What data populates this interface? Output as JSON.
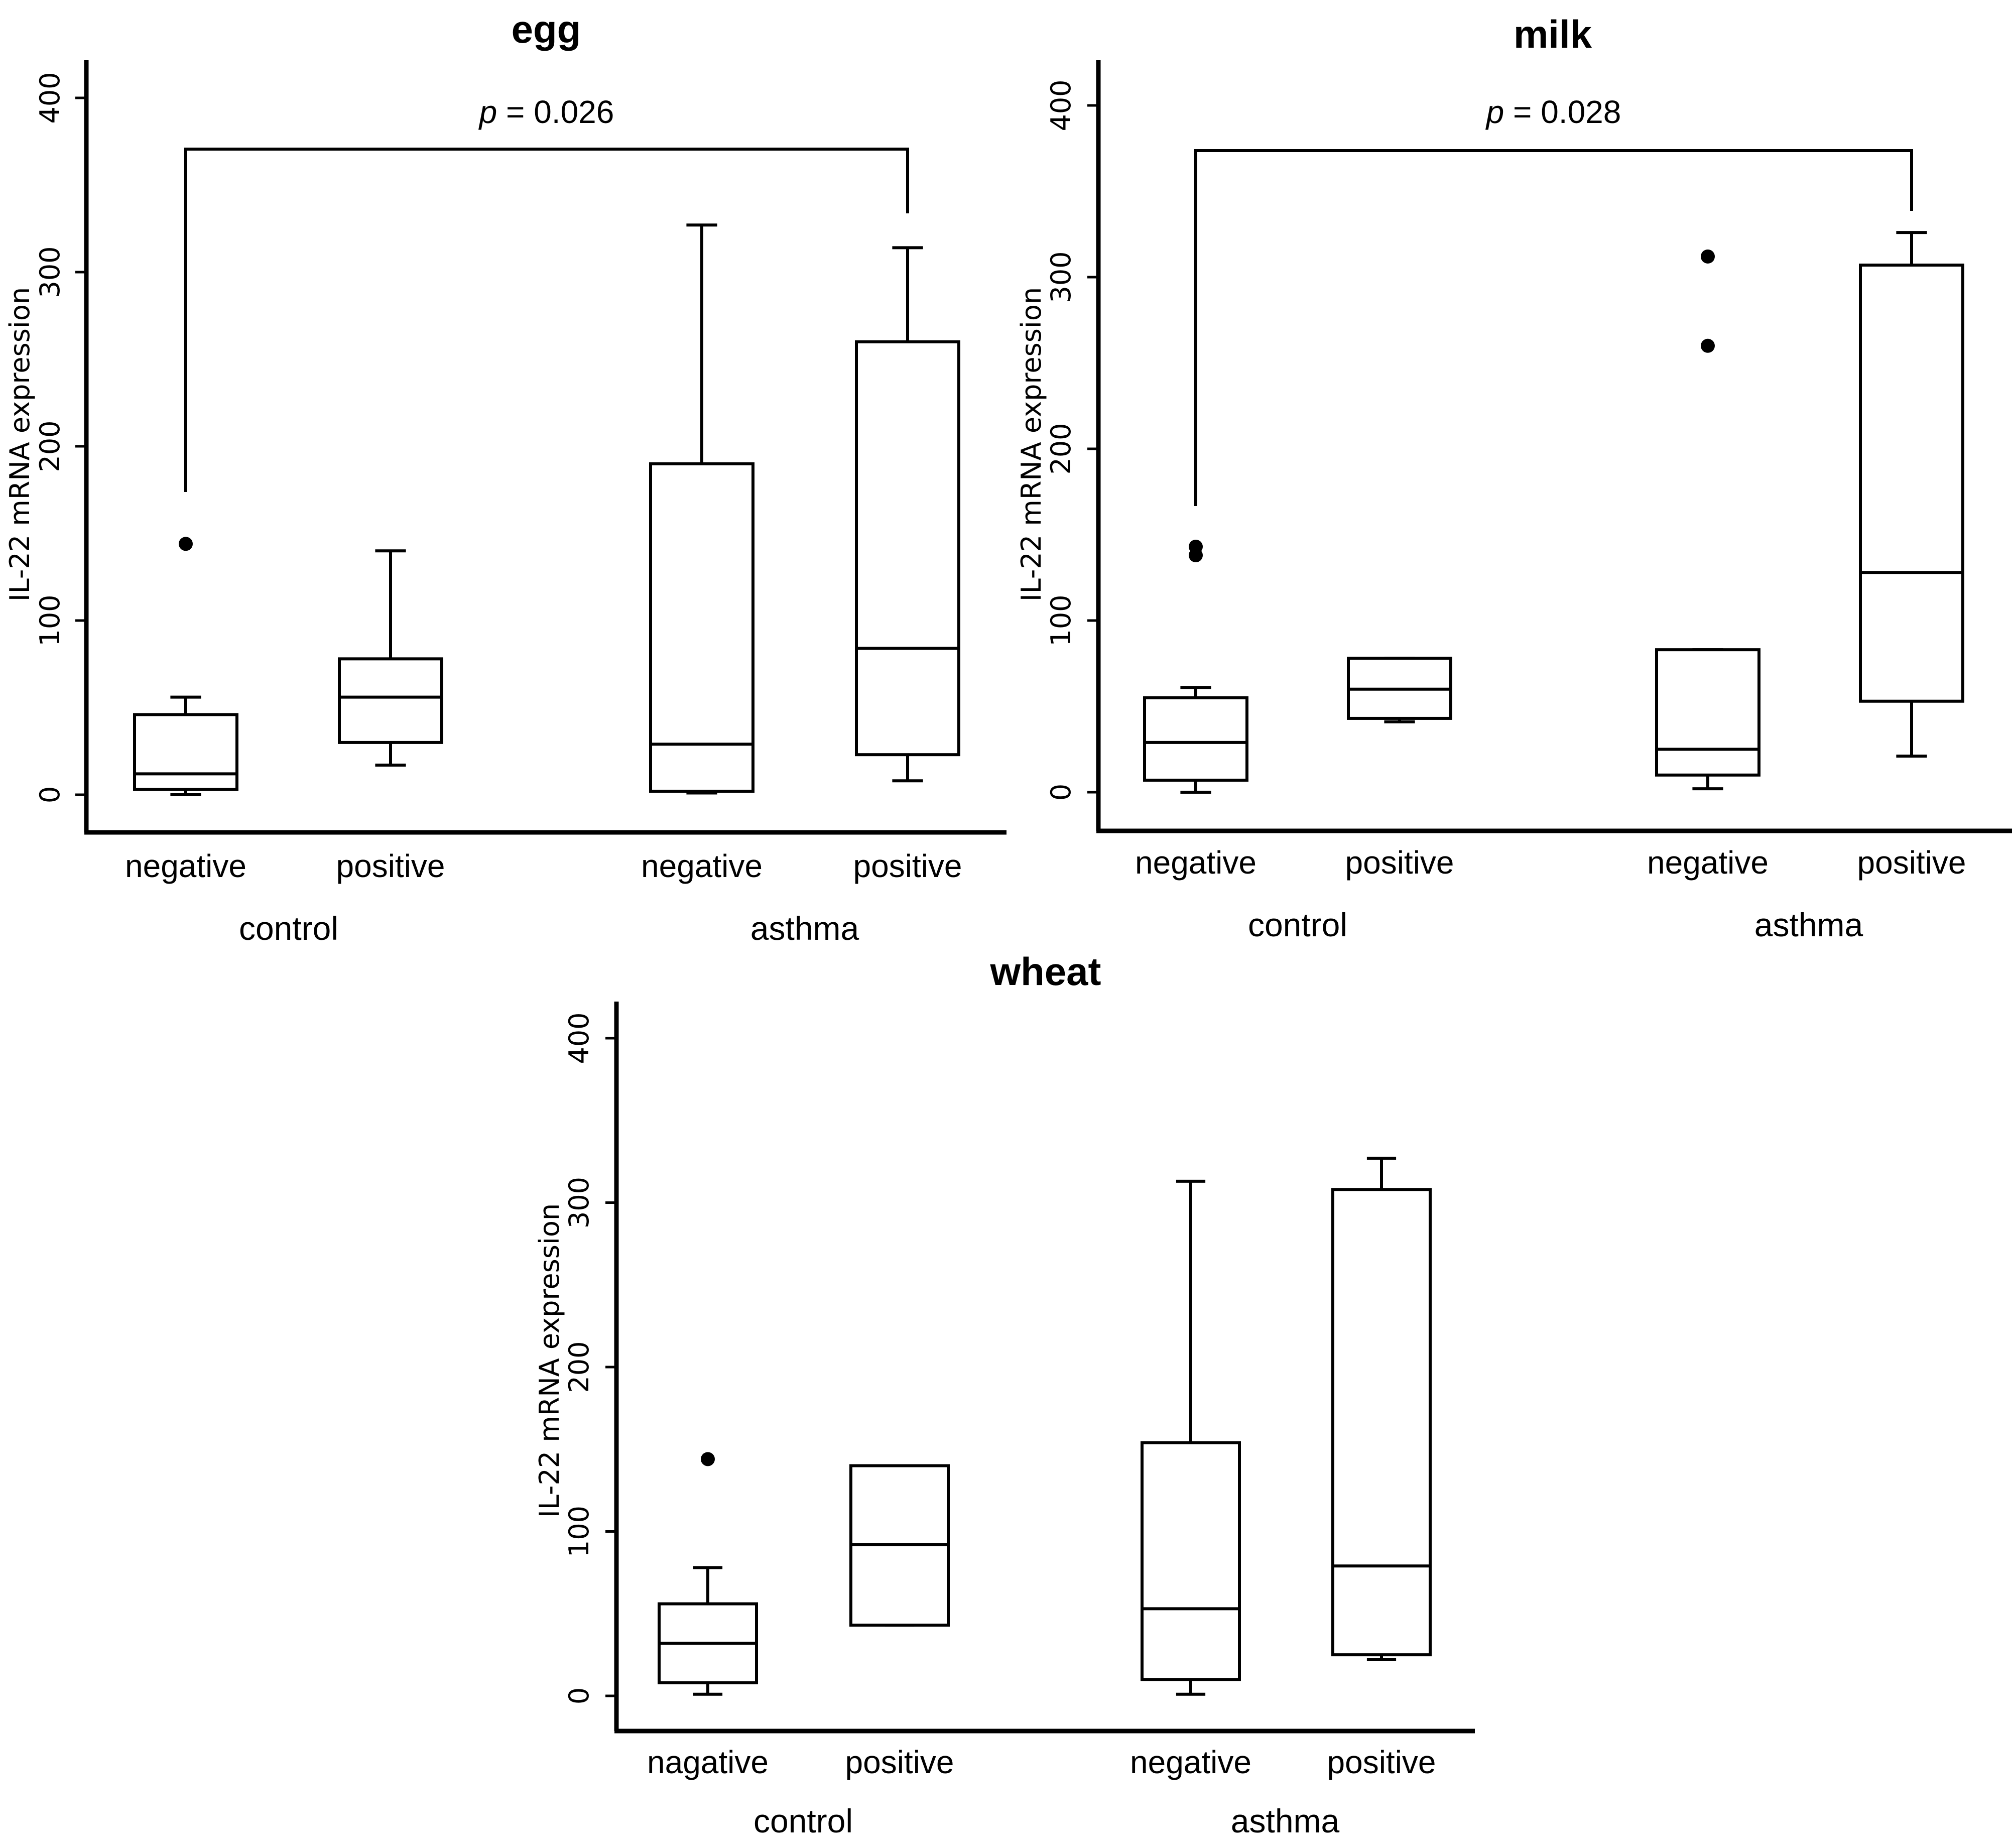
{
  "chart_data": [
    {
      "type": "box",
      "title": "egg",
      "ylabel": "IL-22 mRNA expression",
      "ylim": [
        0,
        400
      ],
      "yticks": [
        0,
        100,
        200,
        300,
        400
      ],
      "groups": [
        "control",
        "asthma"
      ],
      "categories": [
        "negative",
        "positive",
        "negative",
        "positive"
      ],
      "boxes": [
        {
          "group": "control",
          "label": "negative",
          "min": 0,
          "q1": 3,
          "median": 12,
          "q3": 46,
          "max": 56,
          "outliers": [
            144
          ]
        },
        {
          "group": "control",
          "label": "positive",
          "min": 17,
          "q1": 30,
          "median": 56,
          "q3": 78,
          "max": 140,
          "outliers": []
        },
        {
          "group": "asthma",
          "label": "negative",
          "min": 1,
          "q1": 2,
          "median": 29,
          "q3": 190,
          "max": 327,
          "outliers": []
        },
        {
          "group": "asthma",
          "label": "positive",
          "min": 8,
          "q1": 23,
          "median": 84,
          "q3": 260,
          "max": 314,
          "outliers": []
        }
      ],
      "comparison": {
        "from": 0,
        "to": 3,
        "p_symbol": "p",
        "p_text": " = 0.026"
      }
    },
    {
      "type": "box",
      "title": "milk",
      "ylabel": "IL-22 mRNA expression",
      "ylim": [
        0,
        400
      ],
      "yticks": [
        0,
        100,
        200,
        300,
        400
      ],
      "groups": [
        "control",
        "asthma"
      ],
      "categories": [
        "negative",
        "positive",
        "negative",
        "positive"
      ],
      "boxes": [
        {
          "group": "control",
          "label": "negative",
          "min": 0,
          "q1": 7,
          "median": 29,
          "q3": 55,
          "max": 61,
          "outliers": [
            138,
            143
          ]
        },
        {
          "group": "control",
          "label": "positive",
          "min": 41,
          "q1": 43,
          "median": 60,
          "q3": 78,
          "max": 78,
          "outliers": []
        },
        {
          "group": "asthma",
          "label": "negative",
          "min": 2,
          "q1": 10,
          "median": 25,
          "q3": 83,
          "max": 83,
          "outliers": [
            260,
            312
          ]
        },
        {
          "group": "asthma",
          "label": "positive",
          "min": 21,
          "q1": 53,
          "median": 128,
          "q3": 307,
          "max": 326,
          "outliers": []
        }
      ],
      "comparison": {
        "from": 0,
        "to": 3,
        "p_symbol": "p",
        "p_text": " = 0.028"
      }
    },
    {
      "type": "box",
      "title": "wheat",
      "ylabel": "IL-22 mRNA expression",
      "ylim": [
        0,
        400
      ],
      "yticks": [
        0,
        100,
        200,
        300,
        400
      ],
      "groups": [
        "control",
        "asthma"
      ],
      "categories": [
        "nagative",
        "positive",
        "negative",
        "positive"
      ],
      "boxes": [
        {
          "group": "control",
          "label": "nagative",
          "min": 1,
          "q1": 8,
          "median": 32,
          "q3": 56,
          "max": 78,
          "outliers": [
            144
          ]
        },
        {
          "group": "control",
          "label": "positive",
          "min": 43,
          "q1": 43,
          "median": 92,
          "q3": 140,
          "max": 140,
          "outliers": []
        },
        {
          "group": "asthma",
          "label": "negative",
          "min": 1,
          "q1": 10,
          "median": 53,
          "q3": 154,
          "max": 313,
          "outliers": []
        },
        {
          "group": "asthma",
          "label": "positive",
          "min": 22,
          "q1": 25,
          "median": 79,
          "q3": 308,
          "max": 327,
          "outliers": []
        }
      ],
      "comparison": null
    }
  ]
}
